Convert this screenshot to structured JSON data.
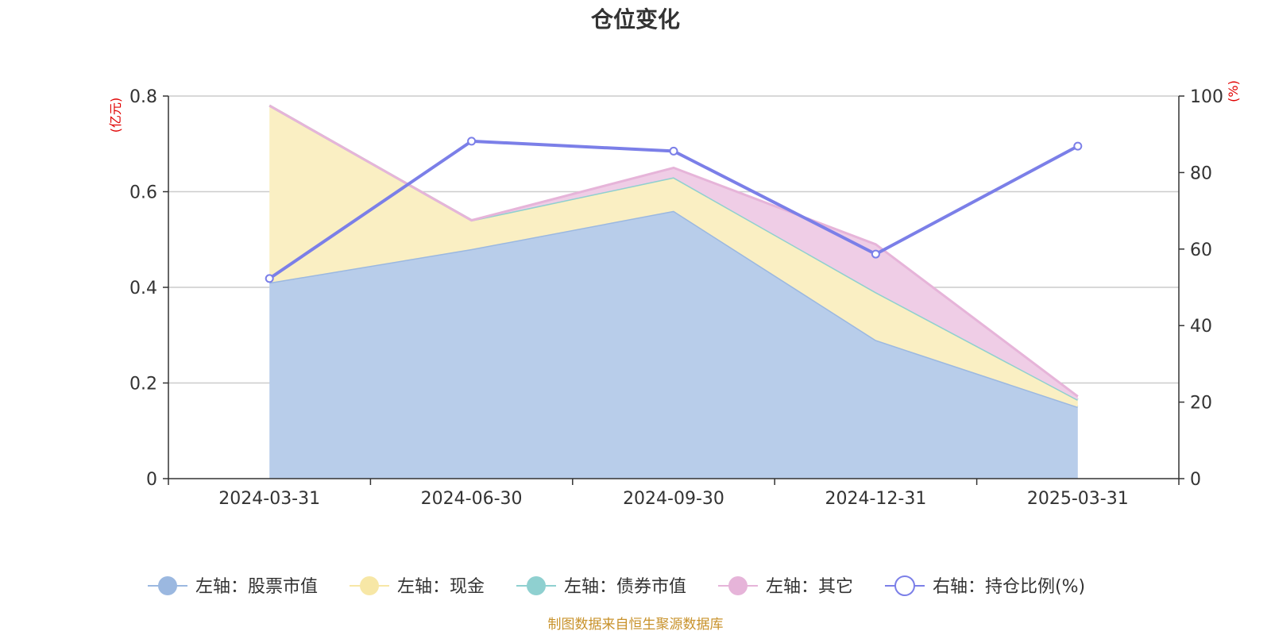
{
  "chart_data": {
    "type": "area",
    "title": "仓位变化",
    "categories": [
      "2024-03-31",
      "2024-06-30",
      "2024-09-30",
      "2024-12-31",
      "2025-03-31"
    ],
    "left_axis": {
      "unit": "(亿元)",
      "ylim": [
        0,
        0.8
      ],
      "ticks": [
        "0",
        "0.2",
        "0.4",
        "0.6",
        "0.8"
      ],
      "stacked": true
    },
    "right_axis": {
      "unit": "(%)",
      "ylim": [
        0,
        100
      ],
      "ticks": [
        "0",
        "20",
        "40",
        "60",
        "80",
        "100"
      ]
    },
    "grid": true,
    "legend_position": "bottom",
    "series": [
      {
        "name": "左轴：股票市值",
        "type": "area",
        "axis": "left",
        "color": "#9bb8e0",
        "fill": "#b8cdea",
        "values": [
          0.41,
          0.48,
          0.56,
          0.29,
          0.15
        ]
      },
      {
        "name": "左轴：现金",
        "type": "area",
        "axis": "left",
        "color": "#f7e7a6",
        "fill": "#faefc3",
        "values": [
          0.37,
          0.06,
          0.07,
          0.1,
          0.015
        ]
      },
      {
        "name": "左轴：债券市值",
        "type": "area",
        "axis": "left",
        "color": "#8fd0d0",
        "fill": "#b5e2e2",
        "values": [
          0,
          0,
          0,
          0,
          0
        ]
      },
      {
        "name": "左轴：其它",
        "type": "area",
        "axis": "left",
        "color": "#e6b4d9",
        "fill": "#efcde6",
        "values": [
          0,
          0,
          0.02,
          0.1,
          0.007
        ]
      },
      {
        "name": "右轴：持仓比例(%)",
        "type": "line",
        "axis": "right",
        "color": "#7b7fe8",
        "values": [
          52.3,
          88.2,
          85.6,
          58.7,
          86.9
        ]
      }
    ],
    "source": "制图数据来自恒生聚源数据库"
  }
}
